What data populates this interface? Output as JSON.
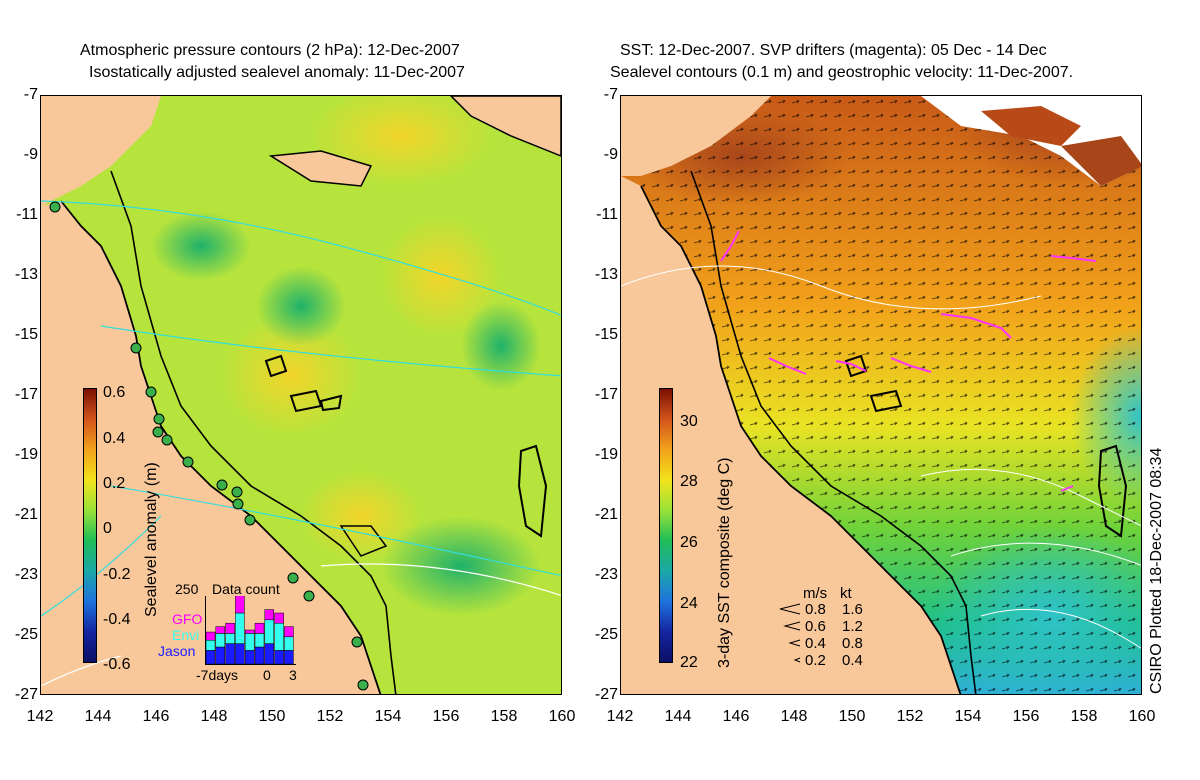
{
  "left_panel": {
    "title_line1": "Atmospheric pressure contours (2 hPa): 12-Dec-2007",
    "title_line2": "Isostatically adjusted sealevel anomaly: 11-Dec-2007",
    "colorbar_label": "Sealevel anomaly (m)",
    "colorbar_ticks": [
      "0.6",
      "0.4",
      "0.2",
      "0",
      "-0.2",
      "-0.4",
      "-0.6"
    ],
    "inset": {
      "title": "Data count",
      "ymax_label": "250",
      "legend": [
        "GFO",
        "Envi",
        "Jason"
      ],
      "x_ticks": [
        "-7days",
        "0",
        "3"
      ],
      "bars": [
        {
          "jason": 0.2,
          "envi": 0.15,
          "gfo": 0.12
        },
        {
          "jason": 0.25,
          "envi": 0.2,
          "gfo": 0.1
        },
        {
          "jason": 0.3,
          "envi": 0.15,
          "gfo": 0.15
        },
        {
          "jason": 0.3,
          "envi": 0.45,
          "gfo": 0.3
        },
        {
          "jason": 0.2,
          "envi": 0.25,
          "gfo": 0.05
        },
        {
          "jason": 0.25,
          "envi": 0.2,
          "gfo": 0.15
        },
        {
          "jason": 0.3,
          "envi": 0.35,
          "gfo": 0.15
        },
        {
          "jason": 0.2,
          "envi": 0.4,
          "gfo": 0.15
        },
        {
          "jason": 0.2,
          "envi": 0.2,
          "gfo": 0.15
        }
      ]
    },
    "colors": {
      "gfo": "#ff00ff",
      "envi": "#33ffee",
      "jason": "#1a1aff"
    }
  },
  "right_panel": {
    "title_line1": "SST: 12-Dec-2007. SVP drifters (magenta): 05 Dec - 14 Dec",
    "title_line2": "Sealevel contours (0.1 m) and geostrophic velocity: 11-Dec-2007.",
    "colorbar_label": "3-day SST composite (deg C)",
    "colorbar_ticks": [
      "30",
      "28",
      "26",
      "24",
      "22"
    ],
    "velocity_legend": {
      "header_ms": "m/s",
      "header_kt": "kt",
      "rows": [
        {
          "ms": "0.8",
          "kt": "1.6"
        },
        {
          "ms": "0.6",
          "kt": "1.2"
        },
        {
          "ms": "0.4",
          "kt": "0.8"
        },
        {
          "ms": "0.2",
          "kt": "0.4"
        }
      ]
    },
    "credit": "CSIRO Plotted 18-Dec-2007 08:34"
  },
  "axes": {
    "y_ticks": [
      "-7",
      "-9",
      "-11",
      "-13",
      "-15",
      "-17",
      "-19",
      "-21",
      "-23",
      "-25",
      "-27"
    ],
    "x_ticks": [
      "142",
      "144",
      "146",
      "148",
      "150",
      "152",
      "154",
      "156",
      "158",
      "160"
    ]
  },
  "colors": {
    "land": "#f9c89a",
    "coast": "#000000"
  }
}
